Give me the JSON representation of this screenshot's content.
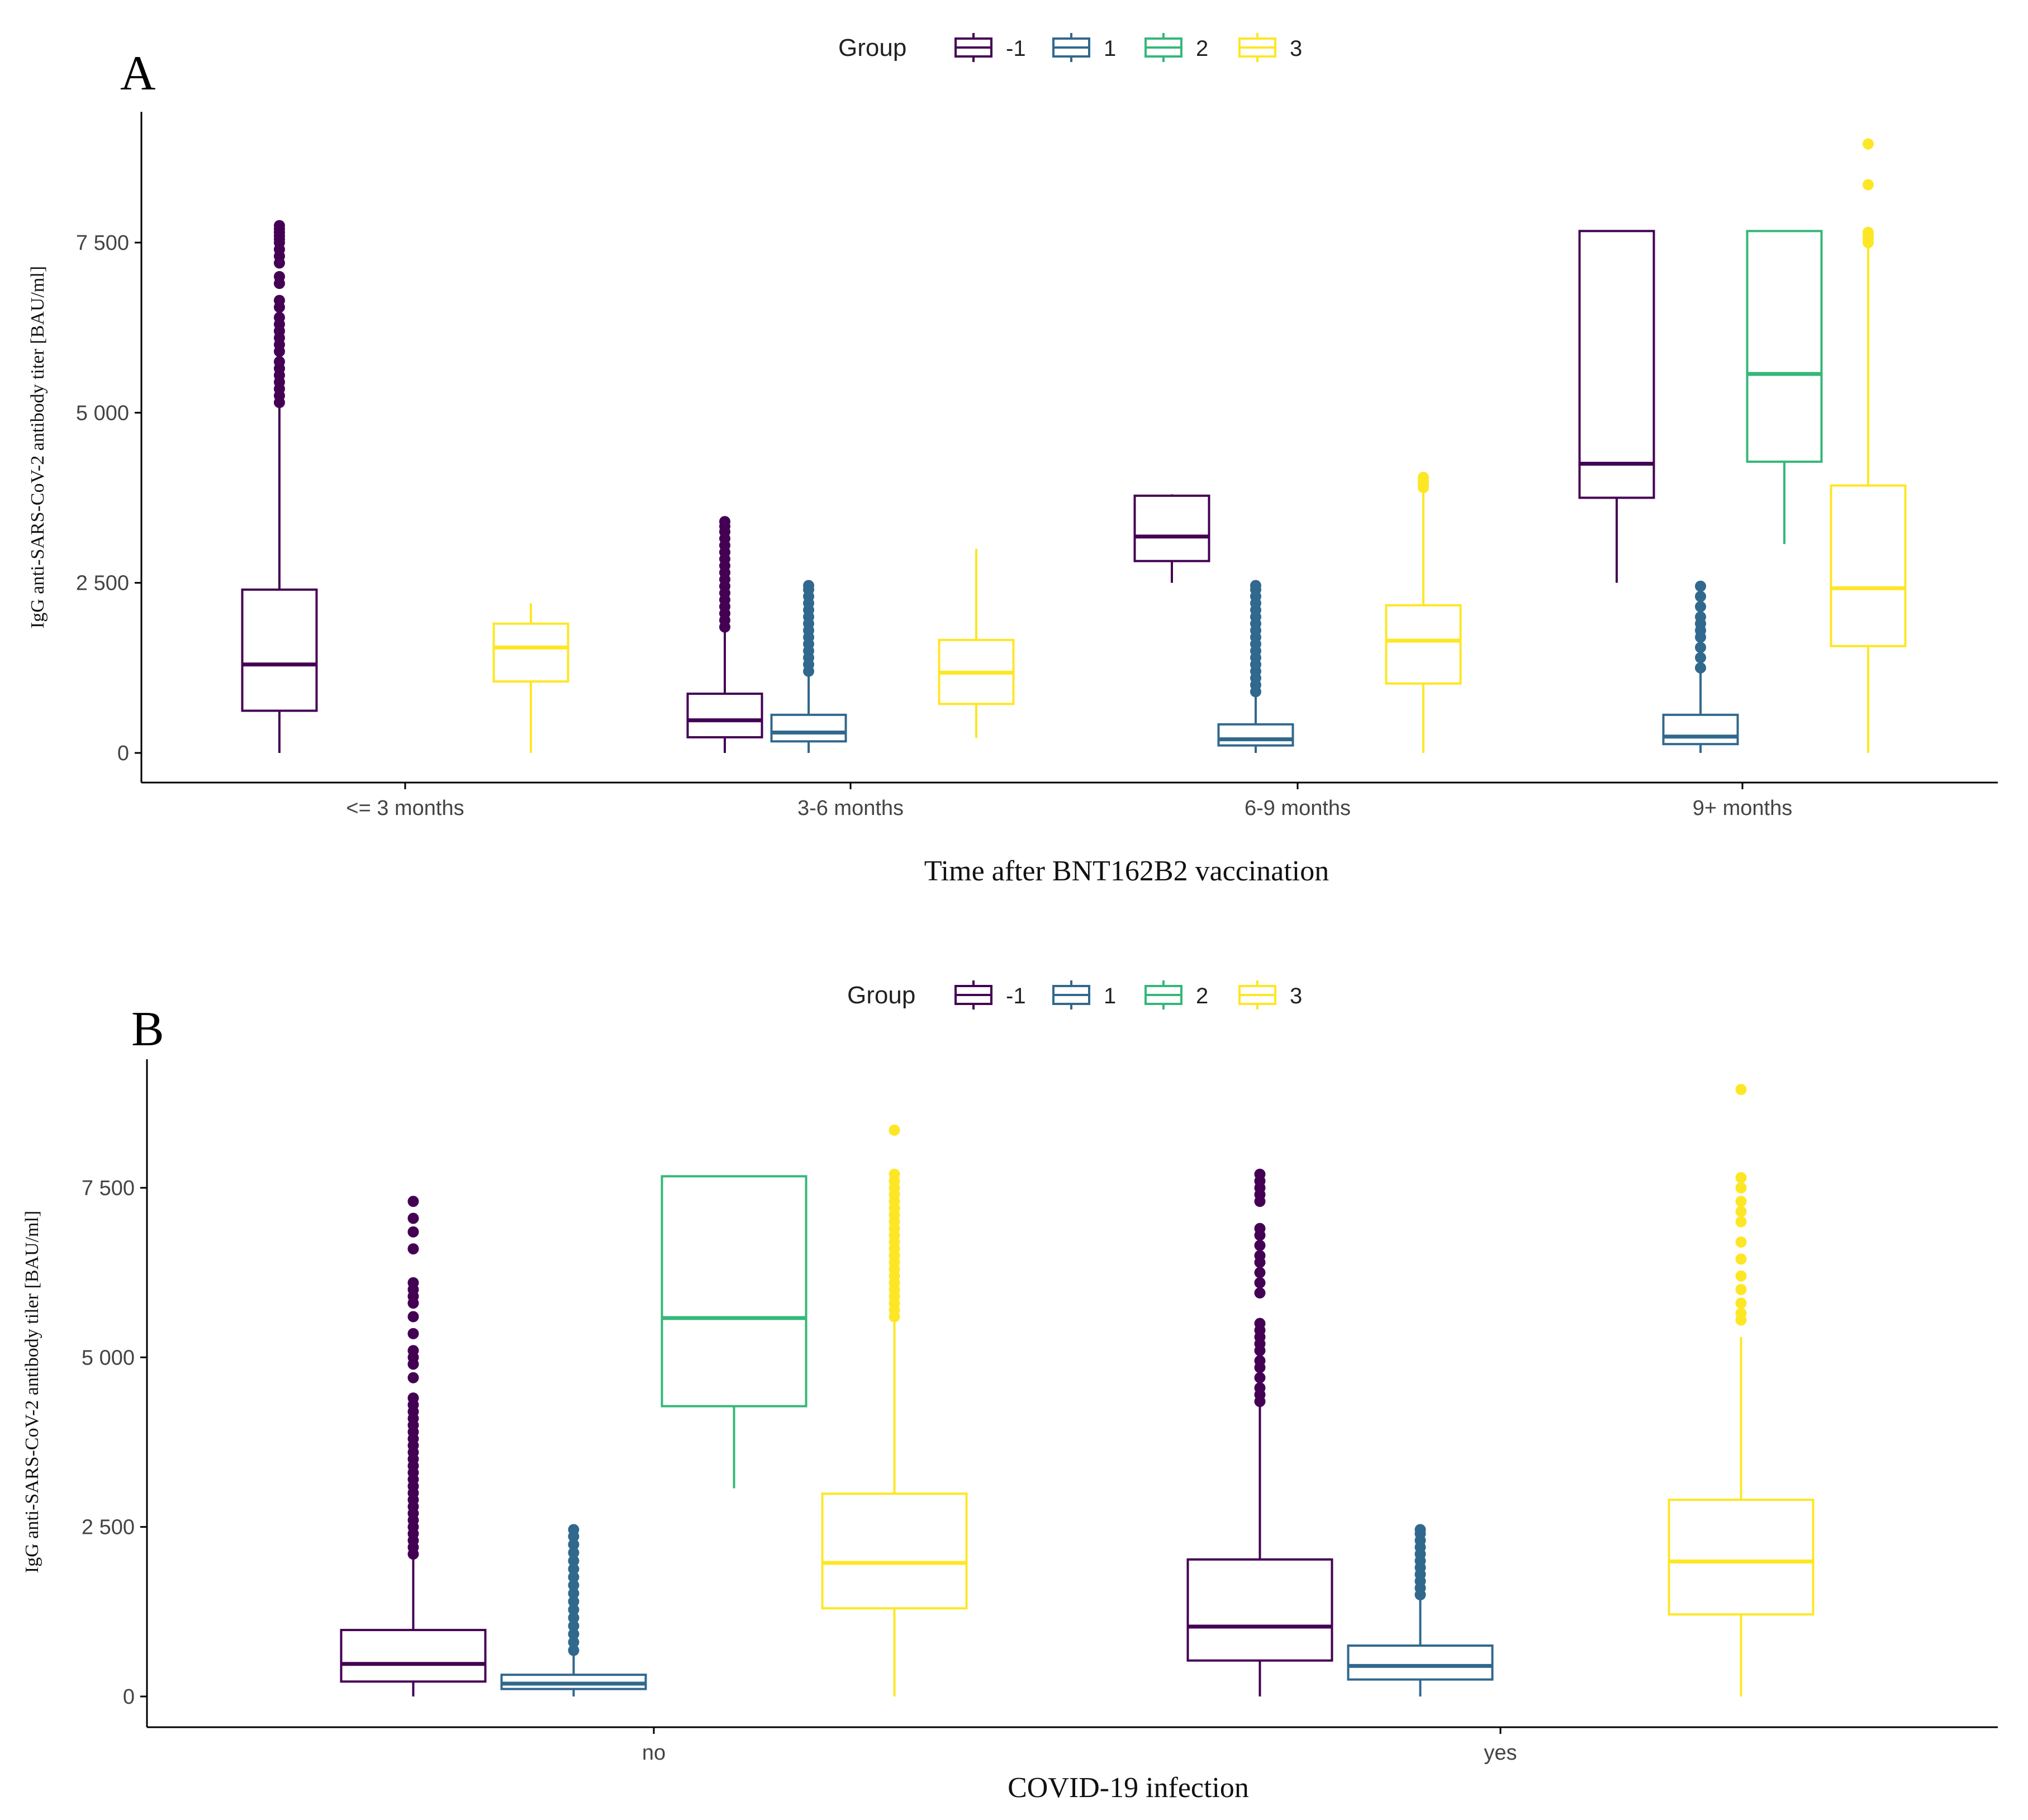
{
  "colors": {
    "g_m1": "#440154",
    "g_1": "#31688e",
    "g_2": "#35b779",
    "g_3": "#fde725",
    "axis": "#000000"
  },
  "legend": {
    "title": "Group",
    "entries": [
      {
        "label": "-1",
        "color": "#440154"
      },
      {
        "label": "1",
        "color": "#31688e"
      },
      {
        "label": "2",
        "color": "#35b779"
      },
      {
        "label": "3",
        "color": "#fde725"
      }
    ]
  },
  "chart_data": [
    {
      "type": "boxplot",
      "panel": "A",
      "title": "",
      "xlabel": "Time after BNT162B2 vaccination",
      "ylabel": "IgG anti-SARS-CoV-2 antibody titer [BAU/ml]",
      "ylim": [
        -400,
        9500
      ],
      "yticks": [
        0,
        2500,
        5000,
        7500
      ],
      "ytick_labels": [
        "0",
        "2 500",
        "5 000",
        "7 500"
      ],
      "categories": [
        "<= 3 months",
        "3-6 months",
        "6-9 months",
        "9+ months"
      ],
      "group_order": [
        "-1",
        "1",
        "2",
        "3"
      ],
      "boxes": [
        {
          "cat": 0,
          "group": "-1",
          "min": 0,
          "q1": 620,
          "median": 1300,
          "q3": 2400,
          "max": 5100,
          "outliers": [
            5150,
            5250,
            5350,
            5450,
            5550,
            5650,
            5750,
            5900,
            6000,
            6100,
            6200,
            6300,
            6400,
            6550,
            6650,
            6900,
            7000,
            7200,
            7300,
            7400,
            7500,
            7550,
            7600,
            7650,
            7700,
            7750
          ]
        },
        {
          "cat": 0,
          "group": "3",
          "min": 0,
          "q1": 1050,
          "median": 1550,
          "q3": 1900,
          "max": 2200,
          "outliers": []
        },
        {
          "cat": 1,
          "group": "-1",
          "min": 0,
          "q1": 230,
          "median": 480,
          "q3": 870,
          "max": 1800,
          "outliers": [
            1850,
            1950,
            2050,
            2150,
            2250,
            2350,
            2450,
            2550,
            2650,
            2750,
            2850,
            2950,
            3050,
            3150,
            3250,
            3330,
            3400
          ]
        },
        {
          "cat": 1,
          "group": "1",
          "min": 0,
          "q1": 170,
          "median": 300,
          "q3": 560,
          "max": 1150,
          "outliers": [
            1200,
            1300,
            1400,
            1500,
            1600,
            1700,
            1800,
            1900,
            2000,
            2100,
            2200,
            2300,
            2400,
            2460
          ]
        },
        {
          "cat": 1,
          "group": "3",
          "min": 220,
          "q1": 720,
          "median": 1180,
          "q3": 1660,
          "max": 3000,
          "outliers": []
        },
        {
          "cat": 2,
          "group": "-1",
          "min": 2500,
          "q1": 2820,
          "median": 3180,
          "q3": 3780,
          "max": 3800,
          "outliers": []
        },
        {
          "cat": 2,
          "group": "1",
          "min": 0,
          "q1": 110,
          "median": 200,
          "q3": 420,
          "max": 850,
          "outliers": [
            900,
            1000,
            1100,
            1200,
            1300,
            1400,
            1500,
            1600,
            1700,
            1800,
            1900,
            2000,
            2100,
            2200,
            2300,
            2400,
            2460
          ]
        },
        {
          "cat": 2,
          "group": "3",
          "min": 0,
          "q1": 1020,
          "median": 1650,
          "q3": 2170,
          "max": 3850,
          "outliers": [
            3900,
            3950,
            4000,
            4050
          ]
        },
        {
          "cat": 3,
          "group": "-1",
          "min": 2500,
          "q1": 3750,
          "median": 4250,
          "q3": 7670,
          "max": 7670,
          "outliers": []
        },
        {
          "cat": 3,
          "group": "1",
          "min": 0,
          "q1": 130,
          "median": 240,
          "q3": 560,
          "max": 1200,
          "outliers": [
            1250,
            1400,
            1550,
            1700,
            1800,
            1900,
            2000,
            2150,
            2300,
            2450
          ]
        },
        {
          "cat": 3,
          "group": "2",
          "min": 3070,
          "q1": 4280,
          "median": 5570,
          "q3": 7670,
          "max": 7670,
          "outliers": []
        },
        {
          "cat": 3,
          "group": "3",
          "min": 0,
          "q1": 1570,
          "median": 2420,
          "q3": 3930,
          "max": 7450,
          "outliers": [
            7500,
            7550,
            7600,
            7650,
            8350,
            8950
          ]
        }
      ]
    },
    {
      "type": "boxplot",
      "panel": "B",
      "title": "",
      "xlabel": "COVID-19 infection",
      "ylabel": "IgG anti-SARS-CoV-2 antibody tiler [BAU/ml]",
      "ylim": [
        -400,
        9500
      ],
      "yticks": [
        0,
        2500,
        5000,
        7500
      ],
      "ytick_labels": [
        "0",
        "2 500",
        "5 000",
        "7 500"
      ],
      "categories": [
        "no",
        "yes"
      ],
      "group_order": [
        "-1",
        "1",
        "2",
        "3"
      ],
      "boxes": [
        {
          "cat": 0,
          "group": "-1",
          "min": 0,
          "q1": 220,
          "median": 480,
          "q3": 980,
          "max": 2050,
          "outliers": [
            2100,
            2200,
            2300,
            2400,
            2500,
            2600,
            2700,
            2800,
            2900,
            3000,
            3100,
            3200,
            3300,
            3400,
            3500,
            3600,
            3700,
            3800,
            3900,
            4000,
            4100,
            4200,
            4300,
            4400,
            4700,
            4900,
            5000,
            5100,
            5350,
            5600,
            5800,
            5900,
            6000,
            6100,
            6600,
            6850,
            7050,
            7300
          ]
        },
        {
          "cat": 0,
          "group": "1",
          "min": 0,
          "q1": 110,
          "median": 190,
          "q3": 320,
          "max": 620,
          "outliers": [
            680,
            800,
            920,
            1040,
            1160,
            1280,
            1400,
            1520,
            1640,
            1760,
            1880,
            2000,
            2120,
            2240,
            2360,
            2460
          ]
        },
        {
          "cat": 0,
          "group": "2",
          "min": 3070,
          "q1": 4280,
          "median": 5580,
          "q3": 7670,
          "max": 7670,
          "outliers": []
        },
        {
          "cat": 0,
          "group": "3",
          "min": 0,
          "q1": 1300,
          "median": 1970,
          "q3": 2990,
          "max": 5550,
          "outliers": [
            5600,
            5700,
            5800,
            5900,
            6000,
            6100,
            6200,
            6300,
            6400,
            6500,
            6600,
            6700,
            6800,
            6900,
            7000,
            7100,
            7200,
            7300,
            7400,
            7500,
            7600,
            7700,
            8350
          ]
        },
        {
          "cat": 1,
          "group": "-1",
          "min": 0,
          "q1": 530,
          "median": 1030,
          "q3": 2020,
          "max": 4300,
          "outliers": [
            4350,
            4450,
            4550,
            4700,
            4850,
            4950,
            5100,
            5200,
            5300,
            5400,
            5500,
            5950,
            6100,
            6250,
            6400,
            6500,
            6650,
            6800,
            6900,
            7300,
            7400,
            7500,
            7600,
            7700
          ]
        },
        {
          "cat": 1,
          "group": "1",
          "min": 0,
          "q1": 250,
          "median": 450,
          "q3": 750,
          "max": 1450,
          "outliers": [
            1500,
            1600,
            1700,
            1800,
            1900,
            2000,
            2100,
            2200,
            2300,
            2400,
            2460
          ]
        },
        {
          "cat": 1,
          "group": "3",
          "min": 0,
          "q1": 1210,
          "median": 1990,
          "q3": 2900,
          "max": 5300,
          "outliers": [
            5550,
            5650,
            5800,
            6000,
            6200,
            6450,
            6700,
            7000,
            7150,
            7300,
            7500,
            7650,
            8950
          ]
        }
      ]
    }
  ],
  "panels": [
    {
      "letter": "A"
    },
    {
      "letter": "B"
    }
  ]
}
